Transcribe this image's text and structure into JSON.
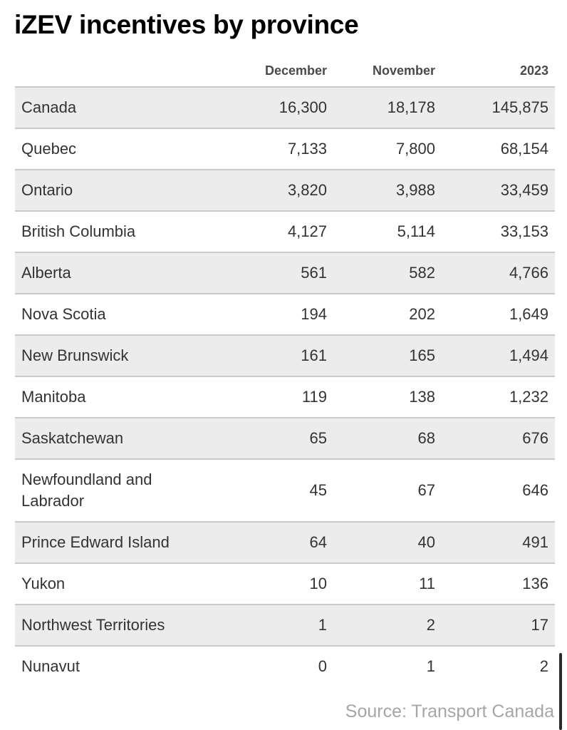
{
  "chart_data": {
    "type": "table",
    "title": "iZEV incentives by province",
    "columns": [
      "",
      "December",
      "November",
      "2023"
    ],
    "rows": [
      {
        "label": "Canada",
        "values": [
          "16,300",
          "18,178",
          "145,875"
        ]
      },
      {
        "label": "Quebec",
        "values": [
          "7,133",
          "7,800",
          "68,154"
        ]
      },
      {
        "label": "Ontario",
        "values": [
          "3,820",
          "3,988",
          "33,459"
        ]
      },
      {
        "label": "British Columbia",
        "values": [
          "4,127",
          "5,114",
          "33,153"
        ]
      },
      {
        "label": "Alberta",
        "values": [
          "561",
          "582",
          "4,766"
        ]
      },
      {
        "label": "Nova Scotia",
        "values": [
          "194",
          "202",
          "1,649"
        ]
      },
      {
        "label": "New Brunswick",
        "values": [
          "161",
          "165",
          "1,494"
        ]
      },
      {
        "label": "Manitoba",
        "values": [
          "119",
          "138",
          "1,232"
        ]
      },
      {
        "label": "Saskatchewan",
        "values": [
          "65",
          "68",
          "676"
        ]
      },
      {
        "label": "Newfoundland and Labrador",
        "values": [
          "45",
          "67",
          "646"
        ]
      },
      {
        "label": "Prince Edward Island",
        "values": [
          "64",
          "40",
          "491"
        ]
      },
      {
        "label": "Yukon",
        "values": [
          "10",
          "11",
          "136"
        ]
      },
      {
        "label": "Northwest Territories",
        "values": [
          "1",
          "2",
          "17"
        ]
      },
      {
        "label": "Nunavut",
        "values": [
          "0",
          "1",
          "2"
        ]
      }
    ],
    "source": "Source: Transport Canada",
    "colors": {
      "shaded_row": "#ececec",
      "row_divider": "#c9c9c9",
      "source_text": "#a6a6a6"
    }
  }
}
